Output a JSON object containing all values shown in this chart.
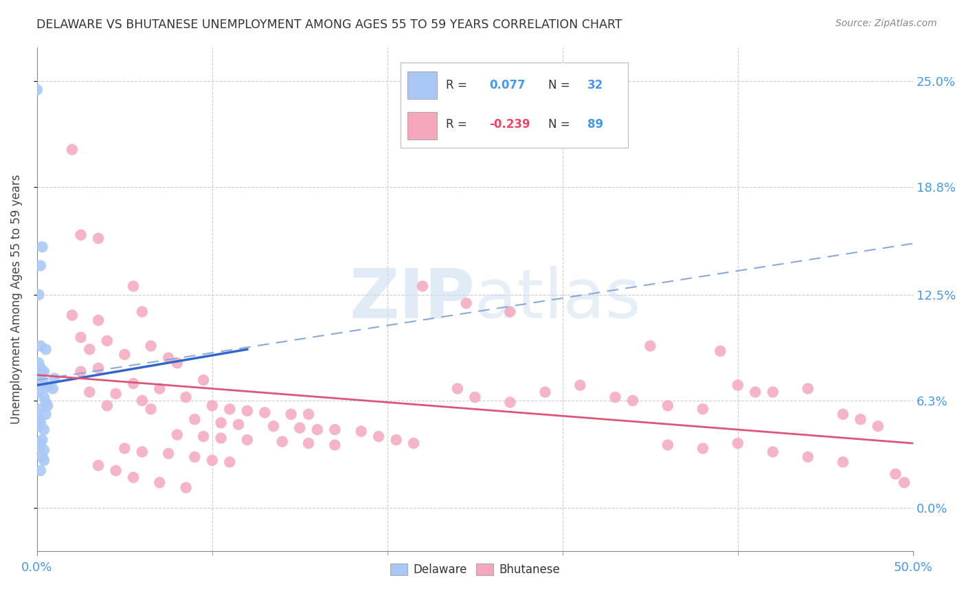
{
  "title": "DELAWARE VS BHUTANESE UNEMPLOYMENT AMONG AGES 55 TO 59 YEARS CORRELATION CHART",
  "source": "Source: ZipAtlas.com",
  "ylabel_label": "Unemployment Among Ages 55 to 59 years",
  "xlim": [
    0.0,
    0.5
  ],
  "ylim": [
    -0.025,
    0.27
  ],
  "delaware_R": 0.077,
  "delaware_N": 32,
  "bhutanese_R": -0.239,
  "bhutanese_N": 89,
  "delaware_color": "#aac8f5",
  "bhutanese_color": "#f5a8bc",
  "delaware_trend_color": "#3366cc",
  "bhutanese_trend_color": "#dd5577",
  "dashed_trend_color": "#88aad8",
  "background_color": "#ffffff",
  "watermark_zip": "ZIP",
  "watermark_atlas": "atlas",
  "ytick_vals": [
    0.0,
    0.063,
    0.125,
    0.188,
    0.25
  ],
  "ytick_labels": [
    "0.0%",
    "6.3%",
    "12.5%",
    "18.8%",
    "25.0%"
  ],
  "xtick_vals": [
    0.0,
    0.5
  ],
  "xtick_labels": [
    "0.0%",
    "50.0%"
  ],
  "xtick_minor_vals": [
    0.1,
    0.2,
    0.3,
    0.4
  ],
  "del_trend_x": [
    0.0,
    0.12
  ],
  "del_trend_y": [
    0.072,
    0.093
  ],
  "bhu_trend_x": [
    0.0,
    0.5
  ],
  "bhu_trend_y": [
    0.078,
    0.038
  ],
  "dash_trend_x": [
    0.0,
    0.5
  ],
  "dash_trend_y": [
    0.075,
    0.155
  ],
  "delaware_points": [
    [
      0.0,
      0.245
    ],
    [
      0.003,
      0.153
    ],
    [
      0.002,
      0.142
    ],
    [
      0.001,
      0.125
    ],
    [
      0.002,
      0.095
    ],
    [
      0.005,
      0.093
    ],
    [
      0.001,
      0.085
    ],
    [
      0.002,
      0.082
    ],
    [
      0.004,
      0.08
    ],
    [
      0.003,
      0.079
    ],
    [
      0.001,
      0.077
    ],
    [
      0.01,
      0.076
    ],
    [
      0.004,
      0.073
    ],
    [
      0.006,
      0.071
    ],
    [
      0.009,
      0.07
    ],
    [
      0.001,
      0.068
    ],
    [
      0.004,
      0.065
    ],
    [
      0.005,
      0.062
    ],
    [
      0.006,
      0.06
    ],
    [
      0.001,
      0.058
    ],
    [
      0.005,
      0.055
    ],
    [
      0.001,
      0.052
    ],
    [
      0.002,
      0.05
    ],
    [
      0.001,
      0.048
    ],
    [
      0.004,
      0.046
    ],
    [
      0.003,
      0.04
    ],
    [
      0.002,
      0.038
    ],
    [
      0.001,
      0.036
    ],
    [
      0.004,
      0.034
    ],
    [
      0.003,
      0.03
    ],
    [
      0.004,
      0.028
    ],
    [
      0.002,
      0.022
    ]
  ],
  "bhutanese_points": [
    [
      0.02,
      0.21
    ],
    [
      0.025,
      0.16
    ],
    [
      0.035,
      0.158
    ],
    [
      0.055,
      0.13
    ],
    [
      0.06,
      0.115
    ],
    [
      0.02,
      0.113
    ],
    [
      0.035,
      0.11
    ],
    [
      0.025,
      0.1
    ],
    [
      0.04,
      0.098
    ],
    [
      0.065,
      0.095
    ],
    [
      0.03,
      0.093
    ],
    [
      0.05,
      0.09
    ],
    [
      0.075,
      0.088
    ],
    [
      0.08,
      0.085
    ],
    [
      0.035,
      0.082
    ],
    [
      0.025,
      0.08
    ],
    [
      0.095,
      0.075
    ],
    [
      0.055,
      0.073
    ],
    [
      0.07,
      0.07
    ],
    [
      0.03,
      0.068
    ],
    [
      0.045,
      0.067
    ],
    [
      0.085,
      0.065
    ],
    [
      0.06,
      0.063
    ],
    [
      0.04,
      0.06
    ],
    [
      0.1,
      0.06
    ],
    [
      0.065,
      0.058
    ],
    [
      0.11,
      0.058
    ],
    [
      0.12,
      0.057
    ],
    [
      0.13,
      0.056
    ],
    [
      0.145,
      0.055
    ],
    [
      0.155,
      0.055
    ],
    [
      0.09,
      0.052
    ],
    [
      0.105,
      0.05
    ],
    [
      0.115,
      0.049
    ],
    [
      0.135,
      0.048
    ],
    [
      0.15,
      0.047
    ],
    [
      0.16,
      0.046
    ],
    [
      0.17,
      0.046
    ],
    [
      0.185,
      0.045
    ],
    [
      0.08,
      0.043
    ],
    [
      0.095,
      0.042
    ],
    [
      0.105,
      0.041
    ],
    [
      0.12,
      0.04
    ],
    [
      0.14,
      0.039
    ],
    [
      0.155,
      0.038
    ],
    [
      0.17,
      0.037
    ],
    [
      0.05,
      0.035
    ],
    [
      0.06,
      0.033
    ],
    [
      0.075,
      0.032
    ],
    [
      0.09,
      0.03
    ],
    [
      0.1,
      0.028
    ],
    [
      0.11,
      0.027
    ],
    [
      0.035,
      0.025
    ],
    [
      0.045,
      0.022
    ],
    [
      0.055,
      0.018
    ],
    [
      0.07,
      0.015
    ],
    [
      0.085,
      0.012
    ],
    [
      0.195,
      0.042
    ],
    [
      0.205,
      0.04
    ],
    [
      0.215,
      0.038
    ],
    [
      0.22,
      0.13
    ],
    [
      0.24,
      0.07
    ],
    [
      0.25,
      0.065
    ],
    [
      0.27,
      0.062
    ],
    [
      0.245,
      0.12
    ],
    [
      0.27,
      0.115
    ],
    [
      0.29,
      0.068
    ],
    [
      0.31,
      0.072
    ],
    [
      0.33,
      0.065
    ],
    [
      0.34,
      0.063
    ],
    [
      0.35,
      0.095
    ],
    [
      0.36,
      0.06
    ],
    [
      0.38,
      0.058
    ],
    [
      0.39,
      0.092
    ],
    [
      0.4,
      0.072
    ],
    [
      0.41,
      0.068
    ],
    [
      0.42,
      0.068
    ],
    [
      0.44,
      0.07
    ],
    [
      0.36,
      0.037
    ],
    [
      0.38,
      0.035
    ],
    [
      0.4,
      0.038
    ],
    [
      0.42,
      0.033
    ],
    [
      0.44,
      0.03
    ],
    [
      0.46,
      0.027
    ],
    [
      0.46,
      0.055
    ],
    [
      0.47,
      0.052
    ],
    [
      0.48,
      0.048
    ],
    [
      0.49,
      0.02
    ],
    [
      0.495,
      0.015
    ]
  ]
}
